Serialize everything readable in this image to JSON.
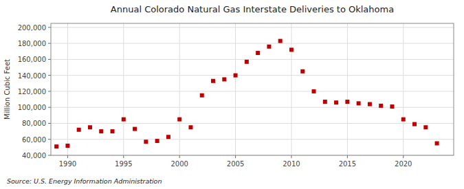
{
  "chart_data": {
    "type": "scatter",
    "title": "Annual Colorado Natural Gas Interstate Deliveries to Oklahoma",
    "ylabel": "Million Cubic Feet",
    "annotations": [
      "Source: U.S. Energy Information Administration"
    ],
    "x": [
      1989,
      1990,
      1991,
      1992,
      1993,
      1994,
      1995,
      1996,
      1997,
      1998,
      1999,
      2000,
      2001,
      2002,
      2003,
      2004,
      2005,
      2006,
      2007,
      2008,
      2009,
      2010,
      2011,
      2012,
      2013,
      2014,
      2015,
      2016,
      2017,
      2018,
      2019,
      2020,
      2021,
      2022,
      2023
    ],
    "values": [
      51000,
      52000,
      72000,
      75000,
      70000,
      70000,
      85000,
      73000,
      57000,
      58000,
      63000,
      85000,
      75000,
      115000,
      133000,
      135000,
      140000,
      157000,
      168000,
      176000,
      183000,
      172000,
      145000,
      120000,
      107000,
      106000,
      107000,
      105000,
      104000,
      102000,
      101000,
      85000,
      79000,
      75000,
      55000
    ],
    "color": "#c00000",
    "marker": "square",
    "xlim": [
      1988.5,
      2024.5
    ],
    "xticks": [
      1990,
      1995,
      2000,
      2005,
      2010,
      2015,
      2020
    ],
    "ylim": [
      40000,
      205000
    ],
    "yticks": [
      {
        "value": 40000,
        "label": "40,000"
      },
      {
        "value": 60000,
        "label": "60,000"
      },
      {
        "value": 80000,
        "label": "80,000"
      },
      {
        "value": 100000,
        "label": "100,000"
      },
      {
        "value": 120000,
        "label": "120,000"
      },
      {
        "value": 140000,
        "label": "140,000"
      },
      {
        "value": 160000,
        "label": "160,000"
      },
      {
        "value": 180000,
        "label": "180,000"
      },
      {
        "value": 200000,
        "label": "200,000"
      }
    ],
    "grid": true
  }
}
